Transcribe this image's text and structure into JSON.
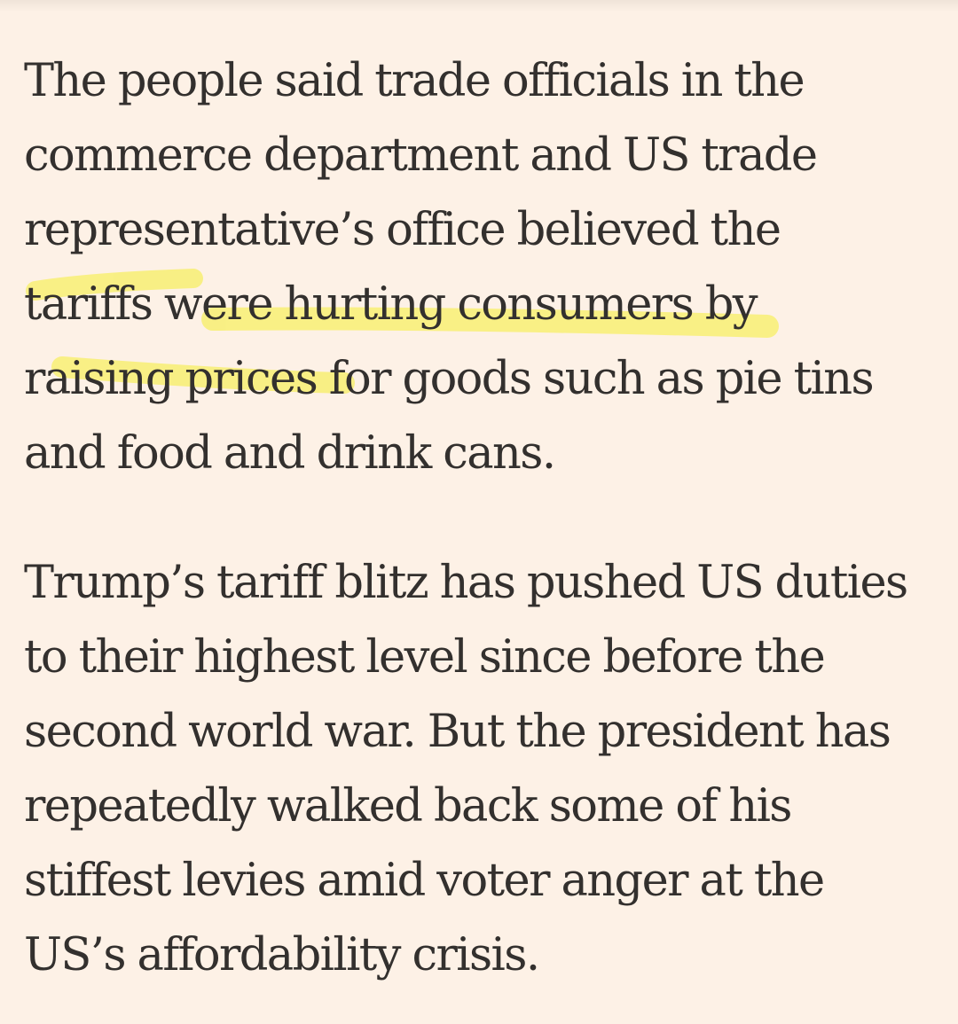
{
  "highlight": {
    "color": "#f8ef7a"
  },
  "article": {
    "paragraphs": [
      {
        "lines": [
          "The people said trade officials in the",
          "commerce department and US trade",
          "representative’s office believed the",
          "tariffs were hurting consumers by",
          "raising prices for goods such as pie tins",
          "and food and drink cans."
        ]
      },
      {
        "lines": [
          "Trump’s tariff blitz has pushed US duties",
          "to their highest level since before the",
          "second world war. But the president has",
          "repeatedly walked back some of his",
          "stiffest levies amid voter anger at the",
          "US’s affordability crisis."
        ]
      }
    ]
  }
}
